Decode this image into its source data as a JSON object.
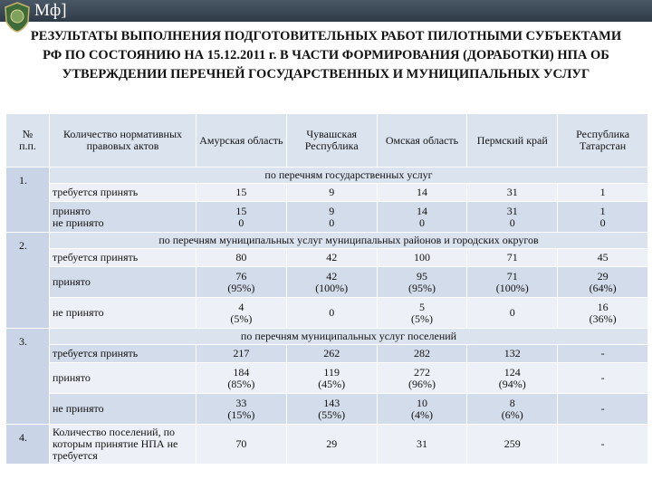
{
  "header": {
    "brand": "Мф]"
  },
  "title": "РЕЗУЛЬТАТЫ ВЫПОЛНЕНИЯ ПОДГОТОВИТЕЛЬНЫХ РАБОТ ПИЛОТНЫМИ СУБЪЕКТАМИ РФ ПО СОСТОЯНИЮ НА 15.12.2011 г. В ЧАСТИ ФОРМИРОВАНИЯ (ДОРАБОТКИ) НПА ОБ УТВЕРЖДЕНИИ ПЕРЕЧНЕЙ ГОСУДАРСТВЕННЫХ И МУНИЦИПАЛЬНЫХ УСЛУГ",
  "table": {
    "columns": [
      "№\nп.п.",
      "Количество нормативных правовых актов",
      "Амурская область",
      "Чувашская Республика",
      "Омская область",
      "Пермский край",
      "Республика Татарстан"
    ],
    "sections": [
      {
        "number": "1.",
        "heading": "по перечням государственных услуг",
        "rows": [
          {
            "label": "требуется принять",
            "cells": [
              "15",
              "9",
              "14",
              "31",
              "1"
            ]
          },
          {
            "label": "принято\nне принято",
            "cells": [
              "15\n0",
              "9\n0",
              "14\n0",
              "31\n0",
              "1\n0"
            ]
          }
        ]
      },
      {
        "number": "2.",
        "heading": "по перечням муниципальных услуг муниципальных районов и городских округов",
        "rows": [
          {
            "label": "требуется принять",
            "cells": [
              "80",
              "42",
              "100",
              "71",
              "45"
            ]
          },
          {
            "label": "принято",
            "cells": [
              "76\n(95%)",
              "42\n(100%)",
              "95\n(95%)",
              "71\n(100%)",
              "29\n(64%)"
            ]
          },
          {
            "label": "не принято",
            "cells": [
              "4\n(5%)",
              "0",
              "5\n(5%)",
              "0",
              "16\n(36%)"
            ]
          }
        ]
      },
      {
        "number": "3.",
        "heading": "по перечням муниципальных услуг поселений",
        "rows": [
          {
            "label": "требуется принять",
            "cells": [
              "217",
              "262",
              "282",
              "132",
              "-"
            ]
          },
          {
            "label": "принято",
            "cells": [
              "184\n(85%)",
              "119\n(45%)",
              "272\n(96%)",
              "124\n(94%)",
              "-"
            ]
          },
          {
            "label": "не принято",
            "cells": [
              "33\n(15%)",
              "143\n(55%)",
              "10\n(4%)",
              "8\n(6%)",
              "-"
            ]
          }
        ]
      },
      {
        "number": "4.",
        "rows": [
          {
            "label": "Количество поселений, по которым принятие НПА не требуется",
            "cells": [
              "70",
              "29",
              "31",
              "259",
              "-"
            ]
          }
        ]
      }
    ]
  }
}
